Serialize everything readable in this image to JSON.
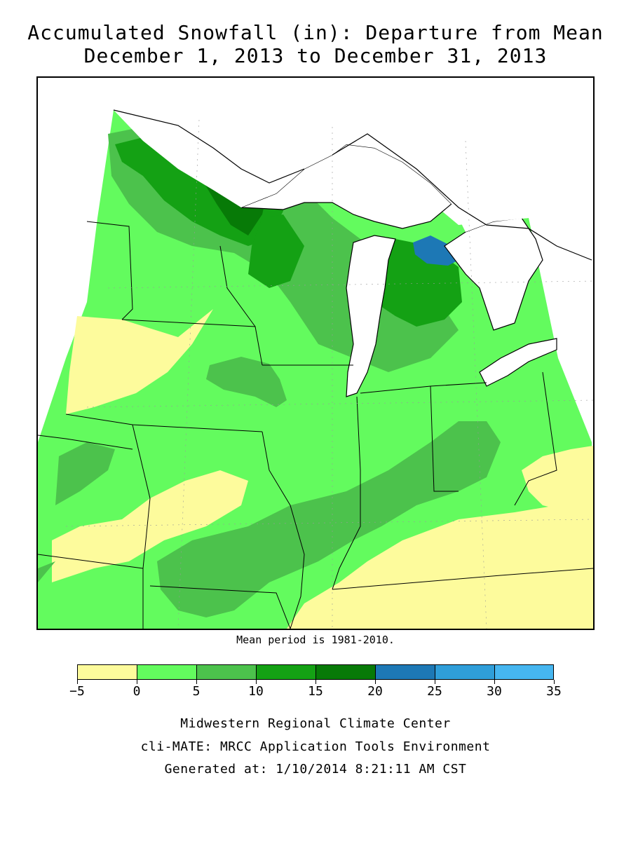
{
  "title_line1": "Accumulated Snowfall (in): Departure from Mean",
  "title_line2": "December 1, 2013 to December 31, 2013",
  "mean_note": "Mean period is 1981-2010.",
  "legend": {
    "bins": [
      {
        "from": -5,
        "to": 0,
        "color": "#fdfb9c"
      },
      {
        "from": 0,
        "to": 5,
        "color": "#63fb5e"
      },
      {
        "from": 5,
        "to": 10,
        "color": "#4cc24c"
      },
      {
        "from": 10,
        "to": 15,
        "color": "#14a114"
      },
      {
        "from": 15,
        "to": 20,
        "color": "#077a07"
      },
      {
        "from": 20,
        "to": 25,
        "color": "#1d78b5"
      },
      {
        "from": 25,
        "to": 30,
        "color": "#2f9ed9"
      },
      {
        "from": 30,
        "to": 35,
        "color": "#46b6f0"
      }
    ],
    "labels": [
      "−5",
      "0",
      "5",
      "10",
      "15",
      "20",
      "25",
      "30",
      "35"
    ]
  },
  "footer": {
    "line1": "Midwestern Regional Climate Center",
    "line2": "cli-MATE: MRCC Application Tools Environment",
    "line3": "Generated at: 1/10/2014 8:21:11 AM CST"
  },
  "colors": {
    "lake": "#ffffff",
    "border": "#000000"
  }
}
